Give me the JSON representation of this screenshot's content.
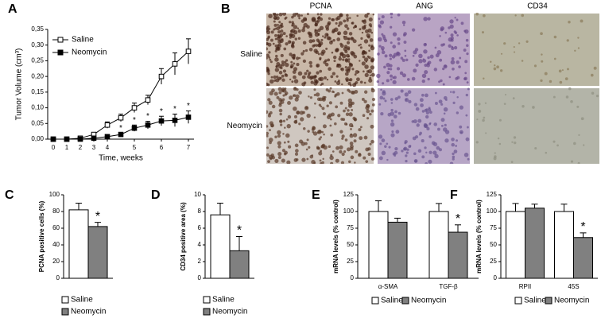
{
  "chart_data": [
    {
      "type": "line",
      "label": "A",
      "xlabel": "Time, weeks",
      "ylabel": "Tumor Volume (cm³)",
      "categories": [
        "0",
        "1",
        "2",
        "3",
        "4",
        null,
        "5",
        null,
        "6",
        null,
        "7"
      ],
      "ylim": [
        0,
        0.35
      ],
      "yticks": [
        {
          "value": 0,
          "label": "0,00"
        },
        {
          "value": 0.05,
          "label": "0,05"
        },
        {
          "value": 0.1,
          "label": "0,10"
        },
        {
          "value": 0.15,
          "label": "0,15"
        },
        {
          "value": 0.2,
          "label": "0,20"
        },
        {
          "value": 0.25,
          "label": "0,25"
        },
        {
          "value": 0.3,
          "label": "0,30"
        },
        {
          "value": 0.35,
          "label": "0,35"
        }
      ],
      "legend": "upper-left",
      "series": [
        {
          "name": "Saline",
          "color": "#ffffff",
          "values": [
            0,
            0,
            0.003,
            0.015,
            0.045,
            0.068,
            0.1,
            0.125,
            0.2,
            0.24,
            0.28
          ],
          "errors": [
            0,
            0,
            0.003,
            0.005,
            0.01,
            0.012,
            0.015,
            0.015,
            0.025,
            0.035,
            0.04
          ],
          "significance": [
            null,
            null,
            null,
            null,
            null,
            null,
            null,
            null,
            null,
            null,
            null
          ]
        },
        {
          "name": "Neomycin",
          "color": "#000000",
          "values": [
            0,
            0,
            0,
            0.003,
            0.008,
            0.015,
            0.035,
            0.045,
            0.058,
            0.06,
            0.07
          ],
          "errors": [
            0,
            0,
            0,
            0.002,
            0.005,
            0.005,
            0.01,
            0.012,
            0.015,
            0.02,
            0.02
          ],
          "significance": [
            null,
            null,
            null,
            null,
            null,
            "*",
            "*",
            "*",
            "*",
            "*",
            "*"
          ]
        }
      ]
    },
    {
      "type": "bar",
      "label": "C",
      "ylabel": "PCNA positive cells (%)",
      "categories": [
        null
      ],
      "ylim": [
        0,
        100
      ],
      "yticks": [
        0,
        20,
        40,
        60,
        80,
        100
      ],
      "legend": "below-stacked",
      "series": [
        {
          "name": "Saline",
          "color": "#ffffff",
          "values": [
            82
          ],
          "errors": [
            8
          ],
          "significance": [
            null
          ]
        },
        {
          "name": "Neomycin",
          "color": "#808080",
          "values": [
            62
          ],
          "errors": [
            5
          ],
          "significance": [
            "*"
          ]
        }
      ]
    },
    {
      "type": "bar",
      "label": "D",
      "ylabel": "CD34 positive area (%)",
      "categories": [
        null
      ],
      "ylim": [
        0,
        10
      ],
      "yticks": [
        0,
        2,
        4,
        6,
        8,
        10
      ],
      "legend": "below-stacked",
      "series": [
        {
          "name": "Saline",
          "color": "#ffffff",
          "values": [
            7.6
          ],
          "errors": [
            1.4
          ],
          "significance": [
            null
          ]
        },
        {
          "name": "Neomycin",
          "color": "#808080",
          "values": [
            3.3
          ],
          "errors": [
            1.7
          ],
          "significance": [
            "*"
          ]
        }
      ]
    },
    {
      "type": "bar",
      "label": "E",
      "ylabel": "mRNA levels (% control)",
      "categories": [
        "α-SMA",
        "TGF-β"
      ],
      "ylim": [
        0,
        125
      ],
      "yticks": [
        0,
        25,
        50,
        75,
        100,
        125
      ],
      "legend": "below-row",
      "series": [
        {
          "name": "Saline",
          "color": "#ffffff",
          "values": [
            100,
            100
          ],
          "errors": [
            16,
            12
          ],
          "significance": [
            null,
            null
          ]
        },
        {
          "name": "Neomycin",
          "color": "#808080",
          "values": [
            84,
            69
          ],
          "errors": [
            6,
            11
          ],
          "significance": [
            null,
            "*"
          ]
        }
      ]
    },
    {
      "type": "bar",
      "label": "F",
      "ylabel": "mRNA levels (% control)",
      "categories": [
        "RPII",
        "45S"
      ],
      "ylim": [
        0,
        125
      ],
      "yticks": [
        0,
        25,
        50,
        75,
        100,
        125
      ],
      "legend": "below-row",
      "series": [
        {
          "name": "Saline",
          "color": "#ffffff",
          "values": [
            100,
            100
          ],
          "errors": [
            12,
            11
          ],
          "significance": [
            null,
            null
          ]
        },
        {
          "name": "Neomycin",
          "color": "#808080",
          "values": [
            105,
            61
          ],
          "errors": [
            6,
            7
          ],
          "significance": [
            null,
            "*"
          ]
        }
      ]
    }
  ],
  "panel_b": {
    "label": "B",
    "columns": [
      "PCNA",
      "ANG",
      "CD34"
    ],
    "rows": [
      "Saline",
      "Neomycin"
    ]
  }
}
